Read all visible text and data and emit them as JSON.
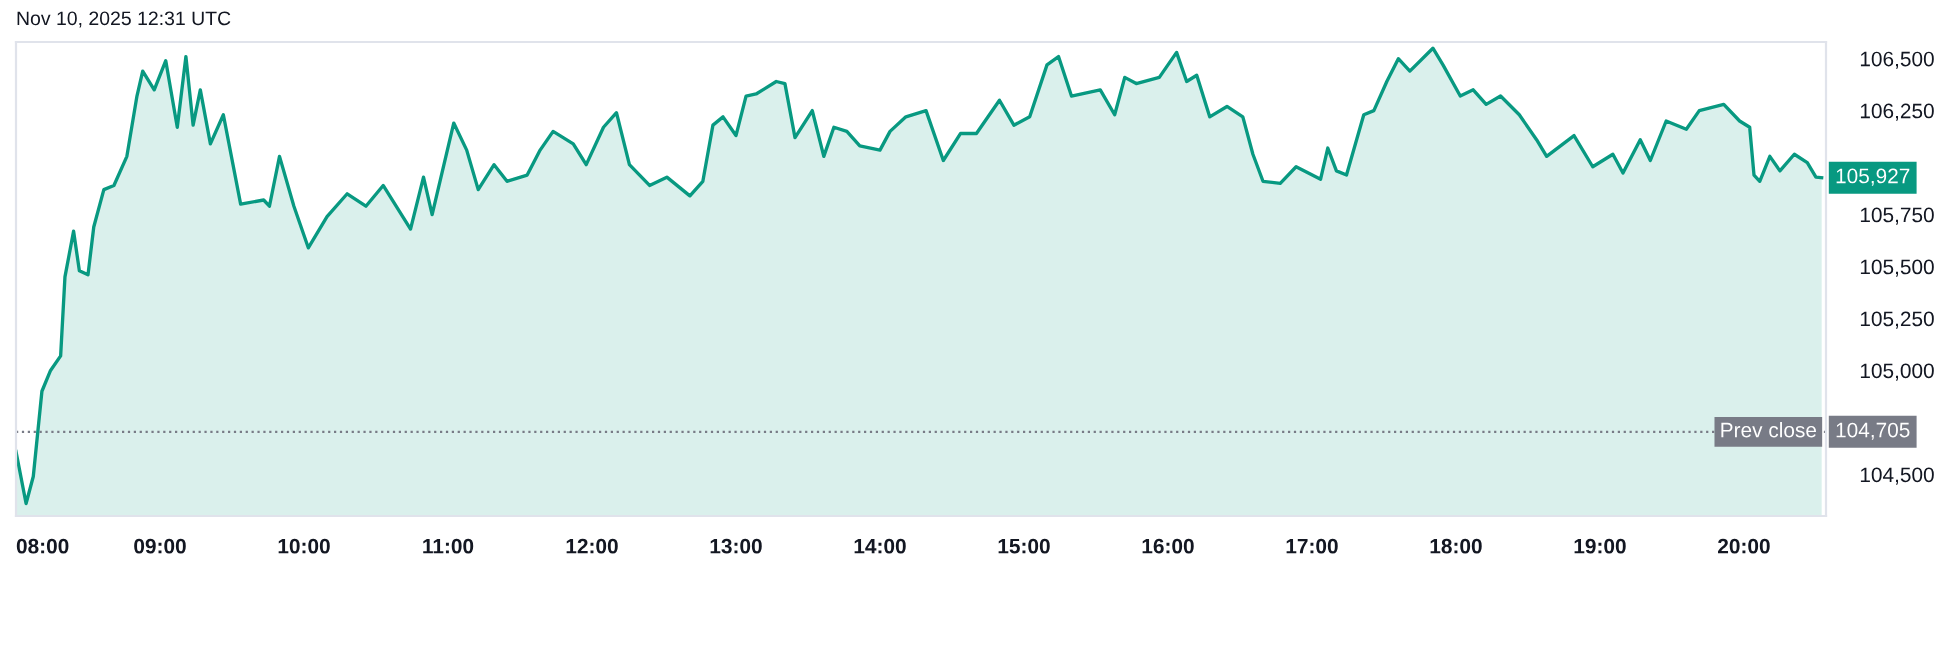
{
  "chart_data": {
    "type": "area",
    "title": "Nov 10, 2025 12:31 UTC",
    "x": [
      8.0,
      8.07,
      8.12,
      8.18,
      8.24,
      8.31,
      8.34,
      8.4,
      8.44,
      8.5,
      8.54,
      8.61,
      8.68,
      8.77,
      8.84,
      8.88,
      8.96,
      9.04,
      9.12,
      9.18,
      9.23,
      9.28,
      9.35,
      9.44,
      9.56,
      9.72,
      9.76,
      9.83,
      9.93,
      10.03,
      10.16,
      10.3,
      10.43,
      10.55,
      10.64,
      10.74,
      10.83,
      10.89,
      11.04,
      11.13,
      11.21,
      11.32,
      11.41,
      11.55,
      11.64,
      11.73,
      11.87,
      11.96,
      12.08,
      12.17,
      12.26,
      12.4,
      12.52,
      12.68,
      12.77,
      12.84,
      12.91,
      13.0,
      13.07,
      13.14,
      13.28,
      13.34,
      13.41,
      13.53,
      13.61,
      13.68,
      13.77,
      13.86,
      14.0,
      14.07,
      14.18,
      14.32,
      14.44,
      14.56,
      14.67,
      14.83,
      14.93,
      15.04,
      15.16,
      15.24,
      15.33,
      15.53,
      15.63,
      15.7,
      15.78,
      15.94,
      16.06,
      16.13,
      16.2,
      16.29,
      16.41,
      16.52,
      16.59,
      16.66,
      16.78,
      16.89,
      17.06,
      17.11,
      17.17,
      17.24,
      17.36,
      17.43,
      17.52,
      17.6,
      17.68,
      17.84,
      17.91,
      18.03,
      18.12,
      18.21,
      18.31,
      18.44,
      18.56,
      18.63,
      18.82,
      18.95,
      19.09,
      19.16,
      19.28,
      19.35,
      19.46,
      19.6,
      19.69,
      19.86,
      19.97,
      20.04,
      20.07,
      20.11,
      20.18,
      20.25,
      20.35,
      20.44,
      20.5,
      20.54
    ],
    "series": [
      {
        "color": "#089981",
        "values": [
          104610,
          104360,
          104490,
          104900,
          105000,
          105070,
          105450,
          105670,
          105480,
          105460,
          105690,
          105870,
          105890,
          106030,
          106320,
          106440,
          106350,
          106490,
          106170,
          106510,
          106180,
          106350,
          106090,
          106230,
          105800,
          105820,
          105790,
          106030,
          105790,
          105590,
          105740,
          105850,
          105790,
          105890,
          105790,
          105680,
          105930,
          105750,
          106190,
          106060,
          105870,
          105990,
          105910,
          105940,
          106060,
          106150,
          106090,
          105990,
          106170,
          106240,
          105990,
          105890,
          105930,
          105840,
          105910,
          106180,
          106220,
          106130,
          106320,
          106330,
          106390,
          106380,
          106120,
          106250,
          106030,
          106170,
          106150,
          106080,
          106060,
          106150,
          106220,
          106250,
          106010,
          106140,
          106140,
          106300,
          106180,
          106220,
          106470,
          106510,
          106320,
          106350,
          106230,
          106410,
          106380,
          106410,
          106530,
          106390,
          106420,
          106220,
          106270,
          106220,
          106040,
          105910,
          105900,
          105980,
          105920,
          106070,
          105960,
          105940,
          106230,
          106250,
          106390,
          106500,
          106440,
          106550,
          106470,
          106320,
          106350,
          106280,
          106320,
          106230,
          106110,
          106030,
          106130,
          105980,
          106040,
          105950,
          106110,
          106010,
          106200,
          106160,
          106250,
          106280,
          106200,
          106170,
          105940,
          105910,
          106030,
          105960,
          106040,
          106000,
          105930,
          105927
        ]
      }
    ],
    "xlim": [
      8.0,
      20.57
    ],
    "xticks": [
      {
        "value": 8,
        "label": "08:00"
      },
      {
        "value": 9,
        "label": "09:00"
      },
      {
        "value": 10,
        "label": "10:00"
      },
      {
        "value": 11,
        "label": "11:00"
      },
      {
        "value": 12,
        "label": "12:00"
      },
      {
        "value": 13,
        "label": "13:00"
      },
      {
        "value": 14,
        "label": "14:00"
      },
      {
        "value": 15,
        "label": "15:00"
      },
      {
        "value": 16,
        "label": "16:00"
      },
      {
        "value": 17,
        "label": "17:00"
      },
      {
        "value": 18,
        "label": "18:00"
      },
      {
        "value": 19,
        "label": "19:00"
      },
      {
        "value": 20,
        "label": "20:00"
      }
    ],
    "ylim": [
      104300,
      106580
    ],
    "yticks": [
      {
        "value": 104500,
        "label": "104,500"
      },
      {
        "value": 105000,
        "label": "105,000"
      },
      {
        "value": 105250,
        "label": "105,250"
      },
      {
        "value": 105500,
        "label": "105,500"
      },
      {
        "value": 105750,
        "label": "105,750"
      },
      {
        "value": 106250,
        "label": "106,250"
      },
      {
        "value": 106500,
        "label": "106,500"
      }
    ],
    "ref_lines": [
      {
        "axis": "y",
        "value": 104705,
        "label": "Prev close",
        "color": "#787b86",
        "line_style": "dotted"
      }
    ],
    "annotations": [
      {
        "text": "104,705",
        "y": 104705
      },
      {
        "text": "105,927",
        "y": 105927
      }
    ],
    "grid": false,
    "legend": false,
    "marker": "none",
    "line_style": "solid"
  }
}
